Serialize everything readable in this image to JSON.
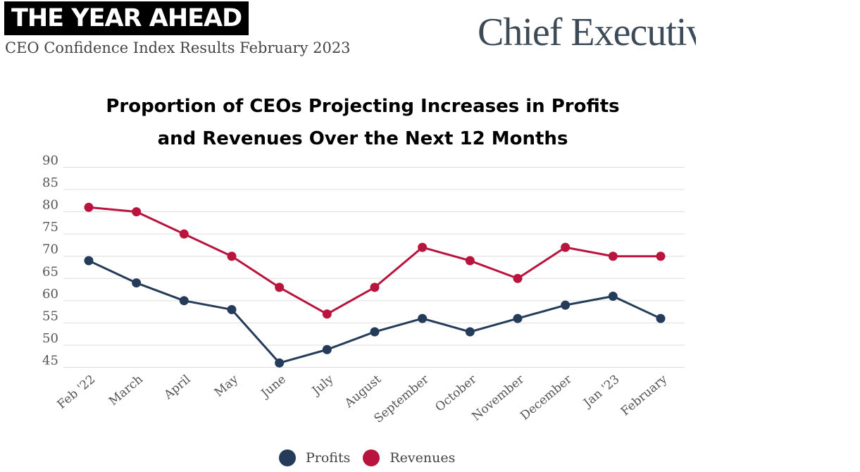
{
  "header": {
    "banner": "THE YEAR AHEAD",
    "subtitle": "CEO Confidence Index Results February 2023",
    "logo": "Chief Executive"
  },
  "colors": {
    "profits": "#243b5a",
    "revenues": "#b8143d",
    "grid": "#dddddd",
    "axis_text": "#555555"
  },
  "chart_data": {
    "type": "line",
    "title_line1": "Proportion of CEOs Projecting Increases in Profits",
    "title_line2": "and Revenues Over the Next 12 Months",
    "categories": [
      "Feb '22",
      "March",
      "April",
      "May",
      "June",
      "July",
      "August",
      "September",
      "October",
      "November",
      "December",
      "Jan '23",
      "February"
    ],
    "yticks": [
      45,
      50,
      55,
      60,
      65,
      70,
      75,
      80,
      85,
      90
    ],
    "ylim": [
      45,
      90
    ],
    "grid": true,
    "legend_position": "bottom",
    "series": [
      {
        "name": "Profits",
        "values": [
          69,
          64,
          60,
          58,
          46,
          49,
          53,
          56,
          53,
          56,
          59,
          61,
          56
        ]
      },
      {
        "name": "Revenues",
        "values": [
          81,
          80,
          75,
          70,
          63,
          57,
          63,
          72,
          69,
          65,
          72,
          70,
          70
        ]
      }
    ]
  }
}
